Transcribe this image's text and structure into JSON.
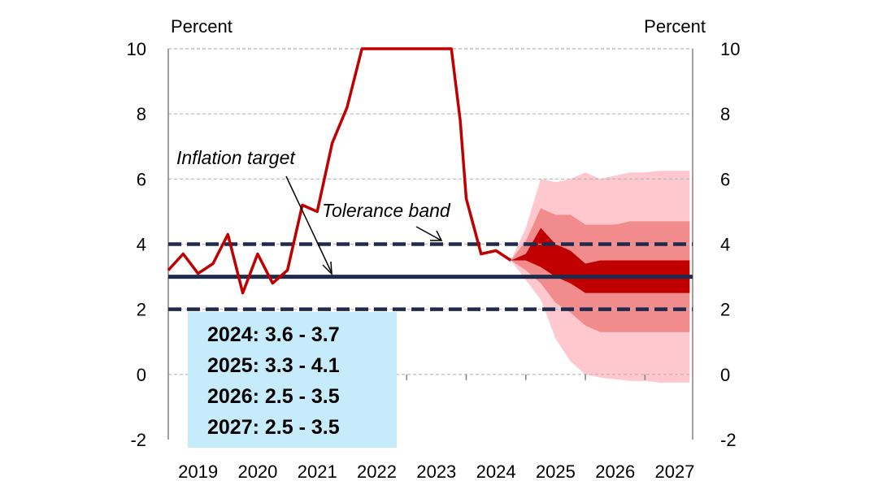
{
  "chart_data": {
    "type": "line",
    "y_unit_left": "Percent",
    "y_unit_right": "Percent",
    "ylim": [
      -2,
      10
    ],
    "y_ticks": [
      -2,
      0,
      2,
      4,
      6,
      8,
      10
    ],
    "x_tick_labels": [
      "2019",
      "2020",
      "2021",
      "2022",
      "2023",
      "2024",
      "2025",
      "2026",
      "2027"
    ],
    "grid": "horizontal dashed",
    "series": [
      {
        "kind": "historical inflation",
        "color": "#c00000",
        "points": [
          [
            2019.0,
            3.2
          ],
          [
            2019.25,
            3.7
          ],
          [
            2019.5,
            3.1
          ],
          [
            2019.75,
            3.4
          ],
          [
            2020.0,
            4.3
          ],
          [
            2020.25,
            2.5
          ],
          [
            2020.5,
            3.7
          ],
          [
            2020.75,
            2.8
          ],
          [
            2021.0,
            3.2
          ],
          [
            2021.25,
            5.2
          ],
          [
            2021.5,
            5.0
          ],
          [
            2021.75,
            7.1
          ],
          [
            2022.0,
            8.2
          ],
          [
            2022.25,
            10.0
          ],
          [
            2023.75,
            10.0
          ],
          [
            2023.9,
            7.8
          ],
          [
            2024.0,
            5.4
          ],
          [
            2024.25,
            3.7
          ],
          [
            2024.5,
            3.8
          ],
          [
            2024.75,
            3.5
          ]
        ]
      }
    ],
    "fan": {
      "x": [
        2024.75,
        2025.0,
        2025.25,
        2025.5,
        2025.75,
        2026.0,
        2026.25,
        2026.5,
        2026.75,
        2027.0,
        2027.25,
        2027.5,
        2027.75
      ],
      "outer": {
        "color": "#ffc7ce",
        "lower": [
          3.5,
          2.9,
          2.3,
          1.1,
          0.4,
          0.0,
          -0.1,
          -0.15,
          -0.2,
          -0.2,
          -0.25,
          -0.25,
          -0.25
        ],
        "upper": [
          3.5,
          4.5,
          6.0,
          5.9,
          6.0,
          6.2,
          6.0,
          6.1,
          6.2,
          6.2,
          6.25,
          6.25,
          6.25
        ]
      },
      "middle": {
        "color": "#f28b8b",
        "lower": [
          3.5,
          3.2,
          2.8,
          2.2,
          1.9,
          1.5,
          1.3,
          1.3,
          1.3,
          1.3,
          1.3,
          1.3,
          1.3
        ],
        "upper": [
          3.5,
          4.1,
          5.1,
          4.9,
          4.9,
          4.6,
          4.6,
          4.6,
          4.7,
          4.7,
          4.7,
          4.7,
          4.7
        ]
      },
      "inner": {
        "color": "#c00000",
        "lower": [
          3.5,
          3.5,
          3.3,
          3.0,
          2.8,
          2.5,
          2.5,
          2.5,
          2.5,
          2.5,
          2.5,
          2.5,
          2.5
        ],
        "upper": [
          3.5,
          3.7,
          4.5,
          4.0,
          3.8,
          3.4,
          3.5,
          3.5,
          3.5,
          3.5,
          3.5,
          3.5,
          3.5
        ]
      }
    },
    "target": {
      "value": 3,
      "color": "#1f2a4d"
    },
    "band": {
      "lower": 2,
      "upper": 4,
      "color": "#1f2a4d"
    },
    "annotations": {
      "inflation_target": "Inflation target",
      "tolerance_band": "Tolerance band"
    },
    "forecast_box": {
      "background": "#c6ecfb",
      "lines": [
        "2024: 3.6 - 3.7",
        "2025: 3.3 - 4.1",
        "2026: 2.5 - 3.5",
        "2027: 2.5 - 3.5"
      ]
    }
  }
}
